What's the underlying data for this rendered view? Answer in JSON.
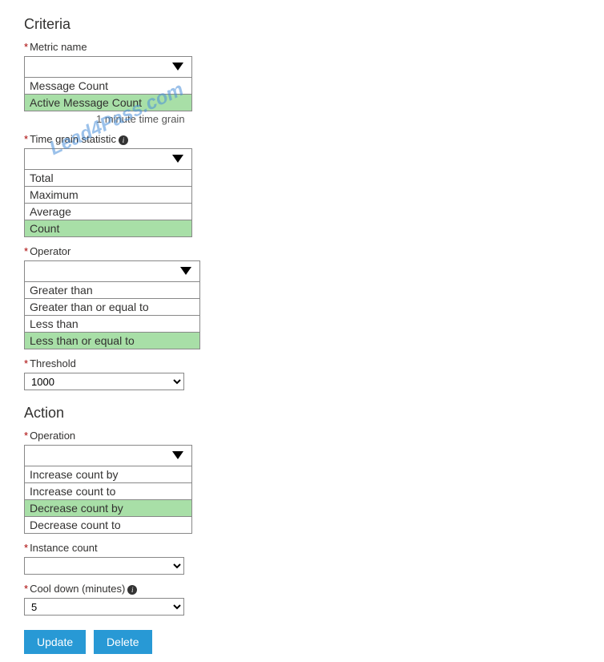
{
  "watermark": "Lead4Pass.com",
  "criteria": {
    "title": "Criteria",
    "metricName": {
      "label": "Metric name",
      "options": [
        "Message Count",
        "Active Message Count"
      ],
      "selected": "Active Message Count",
      "helper": "1 minute time grain"
    },
    "timeGrainStatistic": {
      "label": "Time grain statistic",
      "options": [
        "Total",
        "Maximum",
        "Average",
        "Count"
      ],
      "selected": "Count"
    },
    "operator": {
      "label": "Operator",
      "options": [
        "Greater than",
        "Greater than or equal to",
        "Less than",
        "Less than or equal to"
      ],
      "selected": "Less than or equal to"
    },
    "threshold": {
      "label": "Threshold",
      "value": "1000"
    }
  },
  "action": {
    "title": "Action",
    "operation": {
      "label": "Operation",
      "options": [
        "Increase count by",
        "Increase count to",
        "Decrease count by",
        "Decrease count to"
      ],
      "selected": "Decrease count by"
    },
    "instanceCount": {
      "label": "Instance count",
      "value": ""
    },
    "coolDown": {
      "label": "Cool down (minutes)",
      "value": "5"
    }
  },
  "buttons": {
    "update": {
      "label": "Update",
      "color": "#2899d5"
    },
    "delete": {
      "label": "Delete",
      "color": "#2899d5"
    }
  },
  "colors": {
    "highlight": "#a8dfa7",
    "requiredAsterisk": "#a80000"
  }
}
